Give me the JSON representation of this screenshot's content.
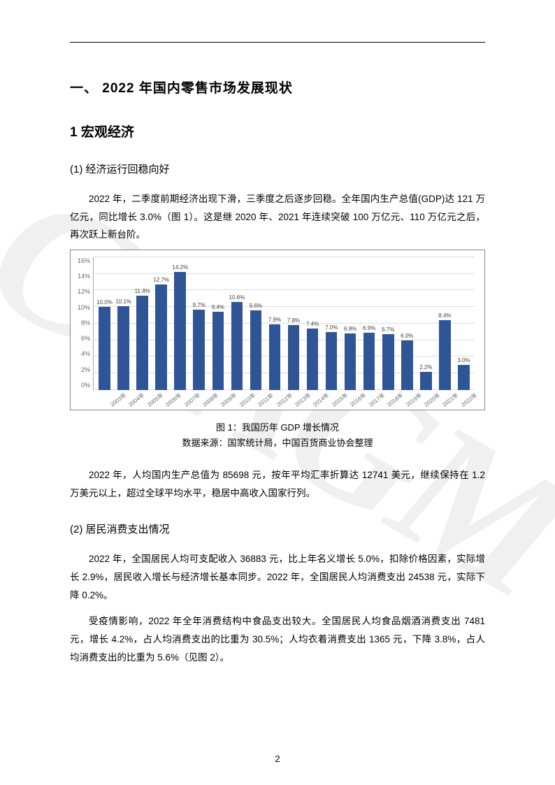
{
  "watermark": "CCAGM",
  "heading1": "一、 2022 年国内零售市场发展现状",
  "heading2": "1  宏观经济",
  "section1": {
    "title": "(1)  经济运行回稳向好",
    "para": "2022 年，二季度前期经济出现下滑，三季度之后逐步回稳。全年国内生产总值(GDP)达 121 万亿元，同比增长 3.0%（图 1）。这是继 2020 年、2021 年连续突破 100 万亿元、110 万亿元之后，再次跃上新台阶。"
  },
  "chart": {
    "type": "bar",
    "categories": [
      "2003年",
      "2004年",
      "2005年",
      "2006年",
      "2007年",
      "2008年",
      "2009年",
      "2010年",
      "2011年",
      "2012年",
      "2013年",
      "2014年",
      "2015年",
      "2016年",
      "2017年",
      "2018年",
      "2019年",
      "2020年",
      "2021年",
      "2022年"
    ],
    "values": [
      10.0,
      10.1,
      11.4,
      12.7,
      14.2,
      9.7,
      9.4,
      10.6,
      9.6,
      7.9,
      7.8,
      7.4,
      7.0,
      6.8,
      6.9,
      6.7,
      6.0,
      2.2,
      8.4,
      3.0
    ],
    "value_labels": [
      "10.0%",
      "10.1%",
      "11.4%",
      "12.7%",
      "14.2%",
      "9.7%",
      "9.4%",
      "10.6%",
      "9.6%",
      "7.9%",
      "7.8%",
      "7.4%",
      "7.0%",
      "6.8%",
      "6.9%",
      "6.7%",
      "6.0%",
      "2.2%",
      "8.4%",
      "3.0%"
    ],
    "bar_color": "#2f5597",
    "ylim_max": 16,
    "ytick_step": 2,
    "yticks": [
      "16%",
      "14%",
      "12%",
      "10%",
      "8%",
      "6%",
      "4%",
      "2%",
      "0%"
    ],
    "grid_color": "#dddddd",
    "label_fontsize": 8
  },
  "caption1": "图 1：我国历年 GDP 增长情况",
  "caption2": "数据来源：国家统计局，中国百货商业协会整理",
  "para2": "2022 年，人均国内生产总值为 85698 元，按年平均汇率折算达 12741 美元，继续保持在 1.2 万美元以上，超过全球平均水平，稳居中高收入国家行列。",
  "section2": {
    "title": "(2)  居民消费支出情况",
    "para1": "2022 年，全国居民人均可支配收入 36883 元，比上年名义增长 5.0%，扣除价格因素，实际增长 2.9%，居民收入增长与经济增长基本同步。2022 年，全国居民人均消费支出 24538 元，实际下降 0.2%。",
    "para2": "受疫情影响，2022 年全年消费结构中食品支出较大。全国居民人均食品烟酒消费支出 7481 元，增长 4.2%，占人均消费支出的比重为 30.5%；人均衣着消费支出 1365 元，下降 3.8%，占人均消费支出的比重为 5.6%（见图 2）。"
  },
  "pageNumber": "2"
}
